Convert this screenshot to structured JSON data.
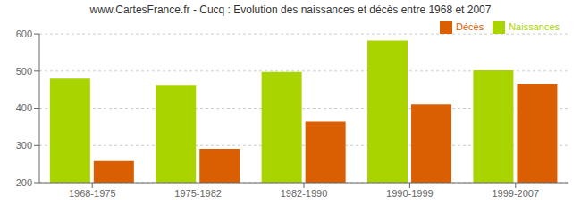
{
  "chart_data": {
    "type": "bar",
    "title": "www.CartesFrance.fr - Cucq : Evolution des naissances et décès entre 1968 et 2007",
    "categories": [
      "1968-1975",
      "1975-1982",
      "1982-1990",
      "1990-1999",
      "1999-2007"
    ],
    "series": [
      {
        "name": "Naissances",
        "color": "#aad400",
        "values": [
          480,
          463,
          498,
          582,
          502
        ]
      },
      {
        "name": "Décès",
        "color": "#d95f02",
        "values": [
          258,
          291,
          364,
          410,
          466
        ]
      }
    ],
    "ylim": [
      200,
      600
    ],
    "yticks": [
      200,
      300,
      400,
      500,
      600
    ],
    "grid": true,
    "legend": "upper right"
  }
}
